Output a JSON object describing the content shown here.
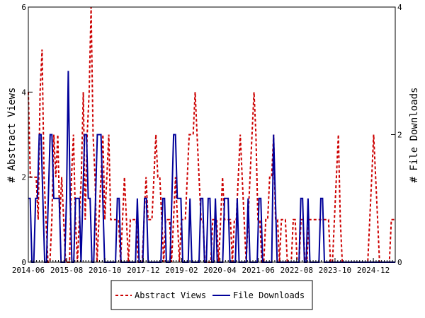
{
  "chart_data": {
    "type": "line",
    "x_ticks": [
      "2014-06",
      "2015-08",
      "2016-10",
      "2017-12",
      "2019-02",
      "2020-04",
      "2021-06",
      "2022-08",
      "2023-10",
      "2024-12"
    ],
    "x_range": [
      "2014-06",
      "2025-08"
    ],
    "y_left": {
      "label": "# Abstract Views",
      "ylim": [
        0,
        6
      ],
      "ticks": [
        0,
        2,
        4,
        6
      ]
    },
    "y_right": {
      "label": "# File Downloads",
      "ylim": [
        0,
        4
      ],
      "ticks": [
        0,
        2,
        4
      ]
    },
    "grid": false,
    "legend_position": "bottom-center",
    "series": [
      {
        "name": "Abstract Views",
        "axis": "left",
        "color": "#cc0000",
        "style": "dashed",
        "values": [
          4,
          2,
          2,
          2,
          2,
          1,
          4,
          5,
          2,
          1,
          0,
          0,
          1,
          3,
          2,
          3,
          1,
          2,
          1,
          0,
          0,
          0,
          2,
          3,
          1,
          0,
          1,
          2,
          4,
          1,
          3,
          4,
          6,
          3,
          2,
          0,
          1,
          2,
          3,
          1,
          2,
          3,
          1,
          1,
          1,
          1,
          1,
          0,
          1,
          2,
          1,
          0,
          1,
          1,
          1,
          1,
          0,
          0,
          0,
          1,
          2,
          1,
          1,
          1,
          2,
          3,
          2,
          2,
          1,
          0,
          1,
          1,
          1,
          0,
          1,
          2,
          1,
          0,
          1,
          1,
          1,
          2,
          3,
          3,
          3,
          4,
          3,
          2,
          1,
          1,
          0,
          0,
          0,
          0,
          1,
          1,
          1,
          0,
          1,
          2,
          1,
          1,
          1,
          1,
          0,
          1,
          1,
          2,
          3,
          2,
          1,
          0,
          1,
          2,
          3,
          4,
          3,
          1,
          1,
          0,
          0,
          1,
          1,
          2,
          2,
          3,
          1,
          1,
          0,
          1,
          1,
          1,
          0,
          0,
          0,
          1,
          1,
          0,
          0,
          1,
          1,
          0,
          0,
          1,
          1,
          1,
          1,
          1,
          1,
          1,
          1,
          1,
          1,
          1,
          0,
          0,
          1,
          2,
          3,
          1,
          0,
          0,
          0,
          0,
          0,
          0,
          0,
          0,
          0,
          0,
          0,
          0,
          0,
          0,
          1,
          2,
          3,
          2,
          1,
          0,
          0,
          0,
          0,
          0,
          0,
          1,
          1,
          1
        ]
      },
      {
        "name": "File Downloads",
        "axis": "right",
        "color": "#000099",
        "style": "solid",
        "values": [
          1,
          1,
          0,
          0,
          1,
          1,
          2,
          2,
          1,
          0,
          0,
          1,
          2,
          2,
          1,
          1,
          1,
          1,
          0,
          0,
          0,
          1,
          3,
          1,
          0,
          0,
          1,
          1,
          1,
          0,
          1,
          2,
          2,
          1,
          1,
          0,
          0,
          1,
          2,
          2,
          2,
          1,
          0,
          0,
          0,
          0,
          0,
          0,
          0,
          1,
          1,
          0,
          0,
          0,
          0,
          0,
          0,
          0,
          0,
          0,
          1,
          0,
          0,
          0,
          1,
          1,
          0,
          0,
          0,
          0,
          0,
          0,
          0,
          0,
          1,
          1,
          0,
          0,
          0,
          1,
          2,
          2,
          1,
          1,
          1,
          0,
          0,
          0,
          0,
          1,
          0,
          0,
          0,
          0,
          0,
          1,
          1,
          0,
          0,
          1,
          1,
          0,
          0,
          1,
          0,
          0,
          0,
          0,
          1,
          1,
          1,
          0,
          0,
          0,
          0,
          1,
          0,
          0,
          0,
          0,
          0,
          1,
          0,
          0,
          0,
          0,
          0,
          1,
          1,
          0,
          0,
          0,
          0,
          0,
          0,
          2,
          1,
          0,
          0,
          0,
          0,
          0,
          0,
          0,
          0,
          0,
          0,
          0,
          0,
          0,
          1,
          1,
          0,
          0,
          1,
          0,
          0,
          0,
          0,
          0,
          0,
          1,
          1,
          0,
          0,
          0,
          0,
          0,
          0,
          0,
          0,
          0,
          0,
          0,
          0,
          0,
          0,
          0,
          0,
          0,
          0,
          0,
          0,
          0,
          0,
          0,
          0,
          0,
          0,
          0,
          0,
          0,
          0,
          0,
          0,
          0,
          0,
          0,
          0,
          0,
          0,
          0,
          0
        ]
      }
    ]
  }
}
